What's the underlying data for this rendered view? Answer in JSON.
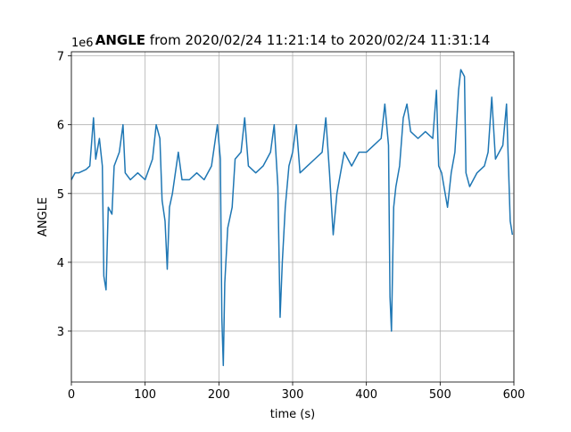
{
  "chart_data": {
    "type": "line",
    "title_bold": "ANGLE",
    "title": "from 2020/02/24 11:21:14 to 2020/02/24 11:31:14",
    "offset_label": "1e6",
    "xlabel": "time (s)",
    "ylabel": "ANGLE",
    "xlim": [
      0,
      600
    ],
    "xticks": [
      0,
      100,
      200,
      300,
      400,
      500,
      600
    ],
    "ylim": [
      2.26,
      7.06
    ],
    "yticks": [
      3,
      4,
      5,
      6,
      7
    ],
    "grid": true,
    "series": [
      {
        "color": "#1f77b4",
        "x": [
          0,
          5,
          10,
          20,
          25,
          30,
          33,
          38,
          42,
          44,
          47,
          50,
          55,
          58,
          65,
          70,
          73,
          80,
          90,
          100,
          110,
          115,
          120,
          123,
          127,
          130,
          133,
          137,
          145,
          150,
          160,
          170,
          180,
          190,
          198,
          202,
          204,
          206,
          208,
          212,
          218,
          222,
          230,
          235,
          240,
          250,
          260,
          270,
          275,
          280,
          283,
          286,
          290,
          295,
          300,
          305,
          310,
          320,
          330,
          340,
          345,
          350,
          355,
          360,
          365,
          370,
          375,
          380,
          385,
          390,
          395,
          400,
          410,
          420,
          425,
          430,
          432,
          434,
          437,
          440,
          445,
          450,
          455,
          460,
          470,
          480,
          490,
          495,
          498,
          502,
          510,
          515,
          520,
          525,
          528,
          533,
          535,
          540,
          550,
          560,
          565,
          570,
          575,
          585,
          590,
          595,
          598
        ],
        "values": [
          5.2,
          5.3,
          5.3,
          5.35,
          5.4,
          6.1,
          5.5,
          5.8,
          5.4,
          3.8,
          3.6,
          4.8,
          4.7,
          5.4,
          5.6,
          6.0,
          5.3,
          5.2,
          5.3,
          5.2,
          5.5,
          6.0,
          5.8,
          4.9,
          4.6,
          3.9,
          4.8,
          5.0,
          5.6,
          5.2,
          5.2,
          5.3,
          5.2,
          5.4,
          6.0,
          5.5,
          3.2,
          2.5,
          3.7,
          4.5,
          4.8,
          5.5,
          5.6,
          6.1,
          5.4,
          5.3,
          5.4,
          5.6,
          6.0,
          5.1,
          3.2,
          4.0,
          4.8,
          5.4,
          5.6,
          6.0,
          5.3,
          5.4,
          5.5,
          5.6,
          6.1,
          5.3,
          4.4,
          5.0,
          5.3,
          5.6,
          5.5,
          5.4,
          5.5,
          5.6,
          5.6,
          5.6,
          5.7,
          5.8,
          6.3,
          5.7,
          3.5,
          3.0,
          4.8,
          5.1,
          5.4,
          6.1,
          6.3,
          5.9,
          5.8,
          5.9,
          5.8,
          6.5,
          5.4,
          5.3,
          4.8,
          5.3,
          5.6,
          6.5,
          6.8,
          6.7,
          5.3,
          5.1,
          5.3,
          5.4,
          5.6,
          6.4,
          5.5,
          5.7,
          6.3,
          4.6,
          4.4
        ]
      }
    ]
  }
}
